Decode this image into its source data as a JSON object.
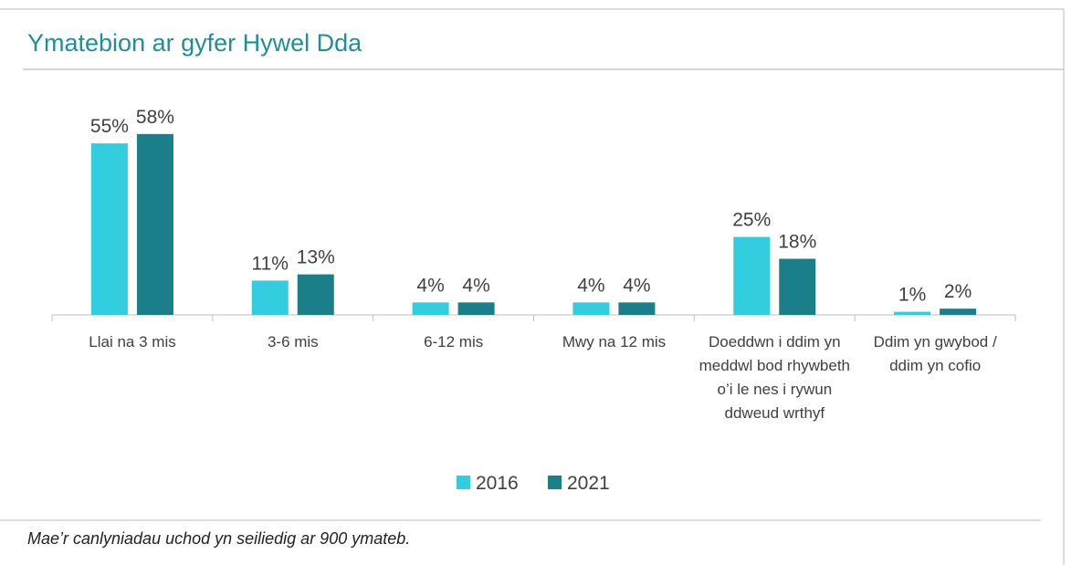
{
  "chart_data": {
    "type": "bar",
    "title": "Ymatebion ar gyfer Hywel Dda",
    "categories": [
      "Llai na 3 mis",
      "3-6 mis",
      "6-12 mis",
      "Mwy na 12 mis",
      "Doeddwn i ddim yn meddwl bod rhywbeth o’i le nes i rywun ddweud wrthyf",
      "Ddim yn gwybod / ddim yn cofio"
    ],
    "series": [
      {
        "name": "2016",
        "color": "#33cde0",
        "values": [
          55,
          11,
          4,
          4,
          25,
          1
        ],
        "value_labels": [
          "55%",
          "11%",
          "4%",
          "4%",
          "25%",
          "1%"
        ]
      },
      {
        "name": "2021",
        "color": "#1b7f89",
        "values": [
          58,
          13,
          4,
          4,
          18,
          2
        ],
        "value_labels": [
          "58%",
          "13%",
          "4%",
          "4%",
          "18%",
          "2%"
        ]
      }
    ],
    "ylim": [
      0,
      60
    ],
    "legend": "bottom",
    "footnote": "Mae’r canlyniadau uchod yn seiliedig ar 900 ymateb."
  }
}
